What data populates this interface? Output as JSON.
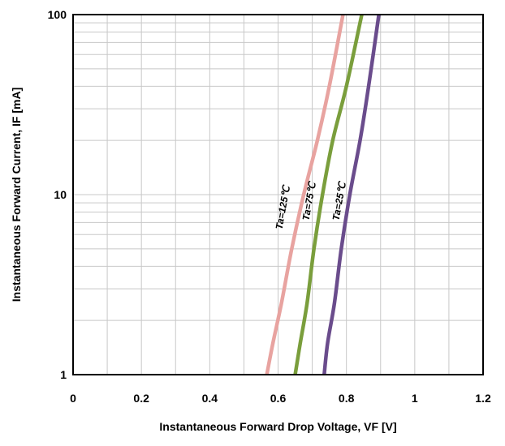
{
  "chart_data": {
    "type": "line",
    "title": "",
    "xlabel": "Instantaneous Forward Drop Voltage, VF [V]",
    "ylabel": "Instantaneous Forward Current, IF [mA]",
    "xlim": [
      0,
      1.2
    ],
    "ylim": [
      1,
      100
    ],
    "yscale": "log",
    "grid": true,
    "x_ticks": [
      "0",
      "0.2",
      "0.4",
      "0.6",
      "0.8",
      "1",
      "1.2"
    ],
    "y_ticks": [
      "1",
      "10",
      "100"
    ],
    "series": [
      {
        "name": "Ta=125℃",
        "color": "#e8a3a0",
        "x": [
          0.567,
          0.585,
          0.61,
          0.64,
          0.675,
          0.715,
          0.75,
          0.79
        ],
        "y": [
          1,
          1.5,
          2.5,
          5,
          10,
          20,
          40,
          100
        ]
      },
      {
        "name": "Ta=75℃",
        "color": "#7a9e3c",
        "x": [
          0.65,
          0.665,
          0.685,
          0.705,
          0.73,
          0.76,
          0.8,
          0.845
        ],
        "y": [
          1,
          1.5,
          2.5,
          5,
          10,
          20,
          40,
          100
        ]
      },
      {
        "name": "Ta=25℃",
        "color": "#6a4c8c",
        "x": [
          0.735,
          0.745,
          0.765,
          0.785,
          0.81,
          0.84,
          0.865,
          0.895
        ],
        "y": [
          1,
          1.5,
          2.5,
          5,
          10,
          20,
          40,
          100
        ]
      }
    ]
  }
}
